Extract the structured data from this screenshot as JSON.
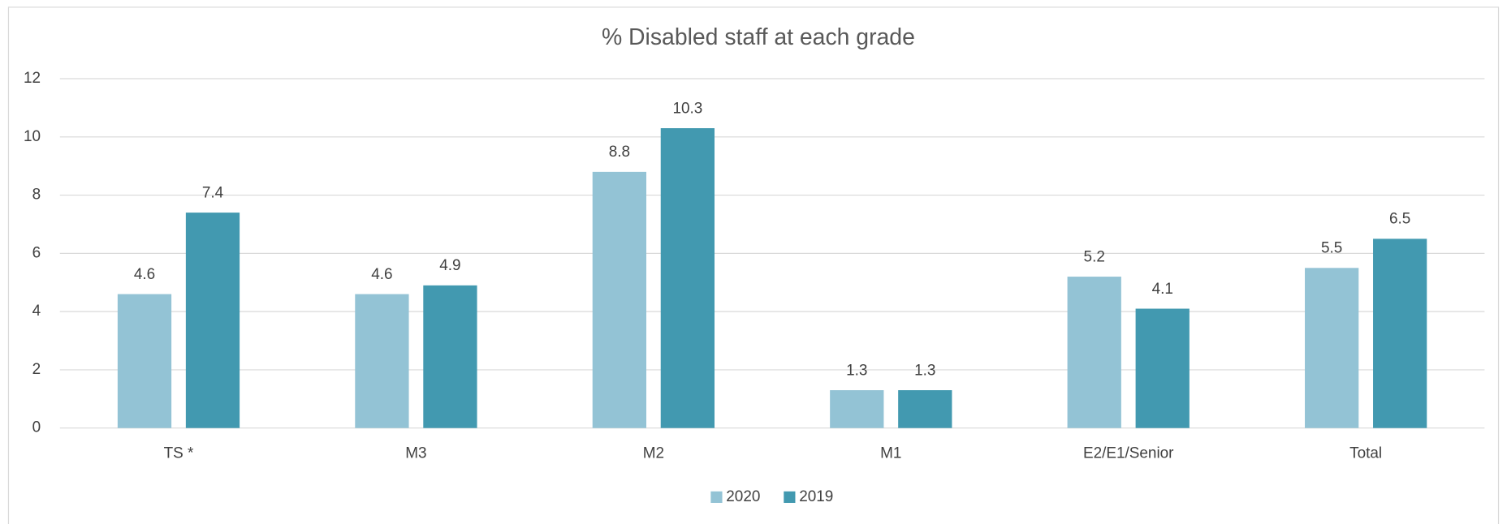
{
  "chart_data": {
    "type": "bar",
    "title": "% Disabled staff at each grade",
    "categories": [
      "TS *",
      "M3",
      "M2",
      "M1",
      "E2/E1/Senior",
      "Total"
    ],
    "series": [
      {
        "name": "2020",
        "color": "#93c3d5",
        "values": [
          4.6,
          4.6,
          8.8,
          1.3,
          5.2,
          5.5
        ]
      },
      {
        "name": "2019",
        "color": "#4299b0",
        "values": [
          7.4,
          4.9,
          10.3,
          1.3,
          4.1,
          6.5
        ]
      }
    ],
    "ylim": [
      0,
      12
    ],
    "yticks": [
      0,
      2,
      4,
      6,
      8,
      10,
      12
    ],
    "grid": true,
    "legend": "bottom"
  }
}
